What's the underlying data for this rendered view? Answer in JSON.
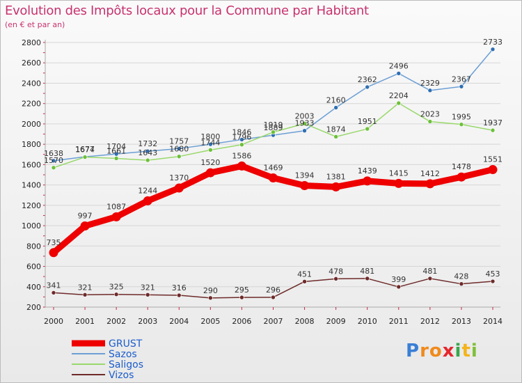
{
  "header": {
    "title": "Evolution des Impôts locaux pour la Commune par Habitant",
    "subtitle": "(en € et par an)"
  },
  "chart_data": {
    "type": "line",
    "title": "Evolution des Impôts locaux pour la Commune par Habitant",
    "subtitle": "(en € et par an)",
    "xlabel": "",
    "ylabel": "",
    "ylim": [
      200,
      2800
    ],
    "yticks": [
      200,
      400,
      600,
      800,
      1000,
      1200,
      1400,
      1600,
      1800,
      2000,
      2200,
      2400,
      2600,
      2800
    ],
    "x": [
      "2000",
      "2001",
      "2002",
      "2003",
      "2004",
      "2005",
      "2006",
      "2007",
      "2008",
      "2009",
      "2010",
      "2011",
      "2012",
      "2013",
      "2014"
    ],
    "series": [
      {
        "name": "Sazos",
        "color": "#6b9fd4",
        "dot": "#2f6fb3",
        "values": [
          1638,
          1677,
          1704,
          1732,
          1757,
          1800,
          1846,
          1889,
          1933,
          2160,
          2362,
          2496,
          2329,
          2367,
          2733
        ]
      },
      {
        "name": "Saligos",
        "color": "#99d86c",
        "dot": "#6cc03a",
        "values": [
          1570,
          1674,
          1661,
          1643,
          1680,
          1744,
          1796,
          1919,
          2003,
          1874,
          1951,
          2204,
          2023,
          1995,
          1937
        ]
      },
      {
        "name": "Vizos",
        "color": "#6e2a2a",
        "dot": "#6e2a2a",
        "values": [
          341,
          321,
          325,
          321,
          316,
          290,
          295,
          296,
          451,
          478,
          481,
          399,
          481,
          428,
          453
        ]
      },
      {
        "name": "GRUST",
        "color": "#ee0000",
        "dot": "#ee0000",
        "values": [
          735,
          997,
          1087,
          1244,
          1370,
          1520,
          1586,
          1469,
          1394,
          1381,
          1439,
          1415,
          1412,
          1478,
          1551
        ]
      }
    ],
    "legend": [
      "GRUST",
      "Sazos",
      "Saligos",
      "Vizos"
    ],
    "legend_position": "bottom-left"
  },
  "logo": {
    "letters": [
      "P",
      "r",
      "o",
      "x",
      "i",
      "t",
      "i"
    ],
    "colors": [
      "#3a7fd5",
      "#f08a1c",
      "#f08a1c",
      "#e6262d",
      "#3aa64b",
      "#f4b41a",
      "#7fbf3a"
    ]
  }
}
